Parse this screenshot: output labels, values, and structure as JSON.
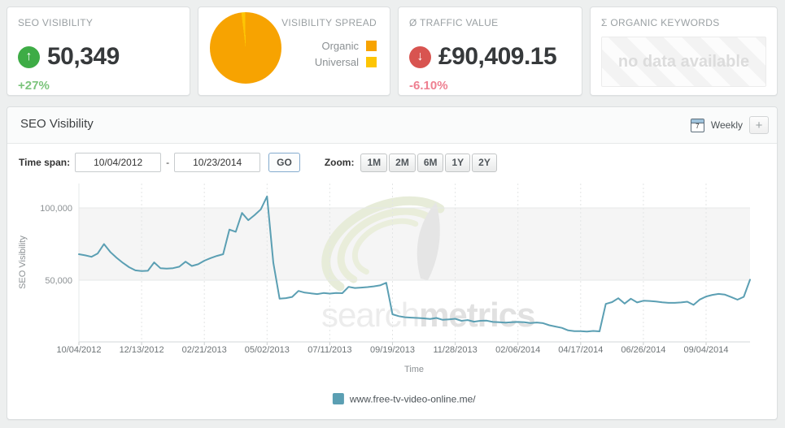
{
  "colors": {
    "up_icon": "#3eac46",
    "up_text": "#7cc47c",
    "down_icon": "#d85450",
    "down_text": "#ee7f90",
    "organic": "#f7a301",
    "universal": "#fdc504",
    "line": "#5b9fb3",
    "band": "#f5f5f5"
  },
  "kpis": {
    "seo_visibility": {
      "label": "SEO VISIBILITY",
      "value": "50,349",
      "delta": "+27%",
      "trend": "up",
      "arrow": "↑"
    },
    "visibility_spread": {
      "label": "VISIBILITY SPREAD",
      "legend": [
        {
          "name": "Organic",
          "color": "#f7a301",
          "pct": 98.3
        },
        {
          "name": "Universal",
          "color": "#fdc504",
          "pct": 1.7
        }
      ]
    },
    "traffic_value": {
      "label": "Ø TRAFFIC VALUE",
      "value": "£90,409.15",
      "delta": "-6.10%",
      "trend": "down",
      "arrow": "↓"
    },
    "organic_keywords": {
      "label": "Σ ORGANIC KEYWORDS",
      "empty_text": "no data available"
    }
  },
  "panel": {
    "title": "SEO Visibility",
    "frequency": "Weekly",
    "frequency_icon_text": "7",
    "add_button": "+",
    "toolbar": {
      "time_span_label": "Time span:",
      "from": "10/04/2012",
      "separator": "-",
      "to": "10/23/2014",
      "go": "GO",
      "zoom_label": "Zoom:",
      "zoom_options": [
        "1M",
        "2M",
        "6M",
        "1Y",
        "2Y"
      ]
    }
  },
  "watermark": {
    "part1": "search",
    "part2": "metrics"
  },
  "chart_data": {
    "type": "line",
    "title": "",
    "xlabel": "Time",
    "ylabel": "SEO Visibility",
    "legend_position": "bottom",
    "grid": "dashed-vertical",
    "ylim": [
      7300,
      116850
    ],
    "band": {
      "from": 50000,
      "to": 100000,
      "color": "#f5f5f5"
    },
    "y_ticks": [
      {
        "value": 50000,
        "label": "50,000"
      },
      {
        "value": 100000,
        "label": "100,000"
      }
    ],
    "x_ticks": [
      {
        "index": 0,
        "label": "10/04/2012"
      },
      {
        "index": 10,
        "label": "12/13/2012"
      },
      {
        "index": 20,
        "label": "02/21/2013"
      },
      {
        "index": 30,
        "label": "05/02/2013"
      },
      {
        "index": 40,
        "label": "07/11/2013"
      },
      {
        "index": 50,
        "label": "09/19/2013"
      },
      {
        "index": 60,
        "label": "11/28/2013"
      },
      {
        "index": 70,
        "label": "02/06/2014"
      },
      {
        "index": 80,
        "label": "04/17/2014"
      },
      {
        "index": 90,
        "label": "06/26/2014"
      },
      {
        "index": 100,
        "label": "09/04/2014"
      }
    ],
    "x_unit": "weekly from 10/04/2012 to 10/23/2014",
    "series": [
      {
        "name": "www.free-tv-video-online.me/",
        "color": "#5b9fb3",
        "values": [
          68000,
          67200,
          66200,
          68500,
          75000,
          69500,
          65500,
          62000,
          59000,
          56800,
          56300,
          56500,
          62300,
          58300,
          58000,
          58300,
          59300,
          62800,
          59800,
          61000,
          63500,
          65300,
          66800,
          68000,
          85000,
          83500,
          96500,
          91500,
          95000,
          99000,
          108000,
          62000,
          37200,
          37600,
          38400,
          42600,
          41400,
          40900,
          40400,
          41100,
          40700,
          41200,
          41000,
          45400,
          44600,
          44900,
          45200,
          45700,
          46400,
          48200,
          26400,
          25100,
          24400,
          24100,
          23900,
          23600,
          23200,
          23900,
          22600,
          22900,
          23300,
          21900,
          22400,
          21300,
          21900,
          22000,
          21100,
          20900,
          20600,
          20900,
          21100,
          20900,
          20400,
          20700,
          20300,
          18800,
          17900,
          17000,
          15300,
          14700,
          14700,
          14500,
          14900,
          14600,
          33600,
          34800,
          37500,
          33800,
          37200,
          34600,
          35800,
          35600,
          35300,
          34700,
          34300,
          34300,
          34600,
          35100,
          32900,
          36600,
          38700,
          39800,
          40500,
          40000,
          38300,
          36500,
          38500,
          50349
        ]
      }
    ]
  }
}
